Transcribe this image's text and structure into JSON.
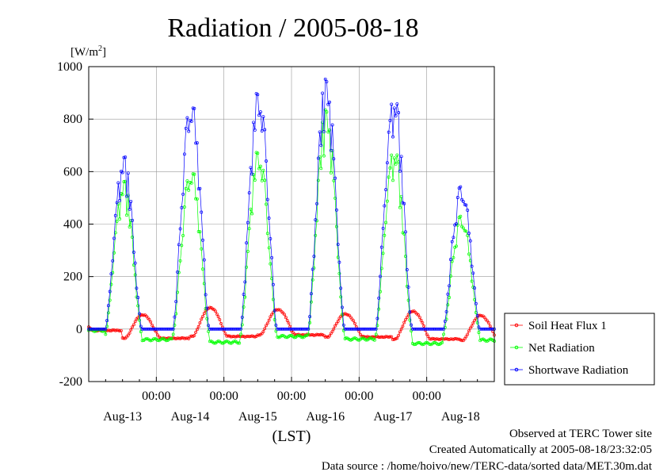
{
  "chart_data": {
    "type": "line",
    "title": "Radiation / 2005-08-18",
    "ylabel_unit": "[W/m",
    "ylabel_unit_sup": "2",
    "ylabel_unit_close": "]",
    "xlabel": "(LST)",
    "ylim": [
      -200,
      1000
    ],
    "yticks": [
      -200,
      0,
      200,
      400,
      600,
      800,
      1000
    ],
    "xlim_days": [
      0,
      6
    ],
    "time_ticks": [
      {
        "day": 1,
        "label": "00:00"
      },
      {
        "day": 2,
        "label": "00:00"
      },
      {
        "day": 3,
        "label": "00:00"
      },
      {
        "day": 4,
        "label": "00:00"
      },
      {
        "day": 5,
        "label": "00:00"
      }
    ],
    "date_labels": [
      {
        "day": 0.5,
        "label": "Aug-13"
      },
      {
        "day": 1.5,
        "label": "Aug-14"
      },
      {
        "day": 2.5,
        "label": "Aug-15"
      },
      {
        "day": 3.5,
        "label": "Aug-16"
      },
      {
        "day": 4.5,
        "label": "Aug-17"
      },
      {
        "day": 5.5,
        "label": "Aug-18"
      }
    ],
    "grid": true,
    "legend_position": "right",
    "series": [
      {
        "name": "Soil Heat Flux 1",
        "color": "#ff0000",
        "daily_peak": [
          55,
          82,
          75,
          58,
          68,
          52
        ],
        "night_min": [
          -5,
          -35,
          -28,
          -22,
          -30,
          -38,
          -42
        ]
      },
      {
        "name": "Net Radiation",
        "color": "#00ff00",
        "daily_peak": [
          580,
          650,
          720,
          860,
          720,
          460
        ],
        "night_min": [
          -5,
          -40,
          -50,
          -28,
          -38,
          -55,
          -42
        ]
      },
      {
        "name": "Shortwave Radiation",
        "color": "#0000ff",
        "daily_peak": [
          675,
          925,
          960,
          980,
          930,
          580
        ],
        "night_min": [
          0,
          0,
          0,
          0,
          0,
          0,
          0
        ]
      }
    ]
  },
  "footer": {
    "line1": "Observed at TERC Tower site",
    "line2": "Created Automatically at 2005-08-18/23:32:05",
    "line3": "Data source : /home/hoivo/new/TERC-data/sorted  data/MET.30m.dat"
  }
}
